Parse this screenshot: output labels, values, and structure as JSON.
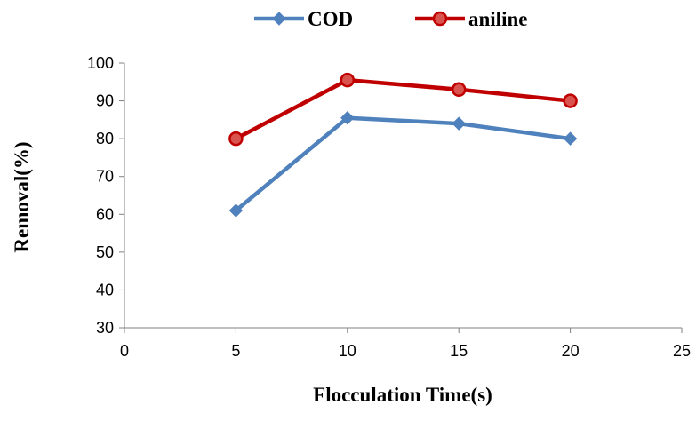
{
  "chart_data": {
    "type": "line",
    "title": "",
    "xlabel": "Flocculation Time(s)",
    "ylabel": "Removal(%)",
    "xlim": [
      0,
      25
    ],
    "ylim": [
      30,
      100
    ],
    "xticks": [
      0,
      5,
      10,
      15,
      20,
      25
    ],
    "yticks": [
      30,
      40,
      50,
      60,
      70,
      80,
      90,
      100
    ],
    "grid": false,
    "legend_position": "top-center",
    "series": [
      {
        "name": "COD",
        "x": [
          5,
          10,
          15,
          20
        ],
        "values": [
          61,
          85.5,
          84,
          80
        ],
        "color": "#4F81BD",
        "marker": "diamond"
      },
      {
        "name": "aniline",
        "x": [
          5,
          10,
          15,
          20
        ],
        "values": [
          80,
          95.5,
          93,
          90
        ],
        "color": "#C00000",
        "marker": "circle"
      }
    ]
  }
}
